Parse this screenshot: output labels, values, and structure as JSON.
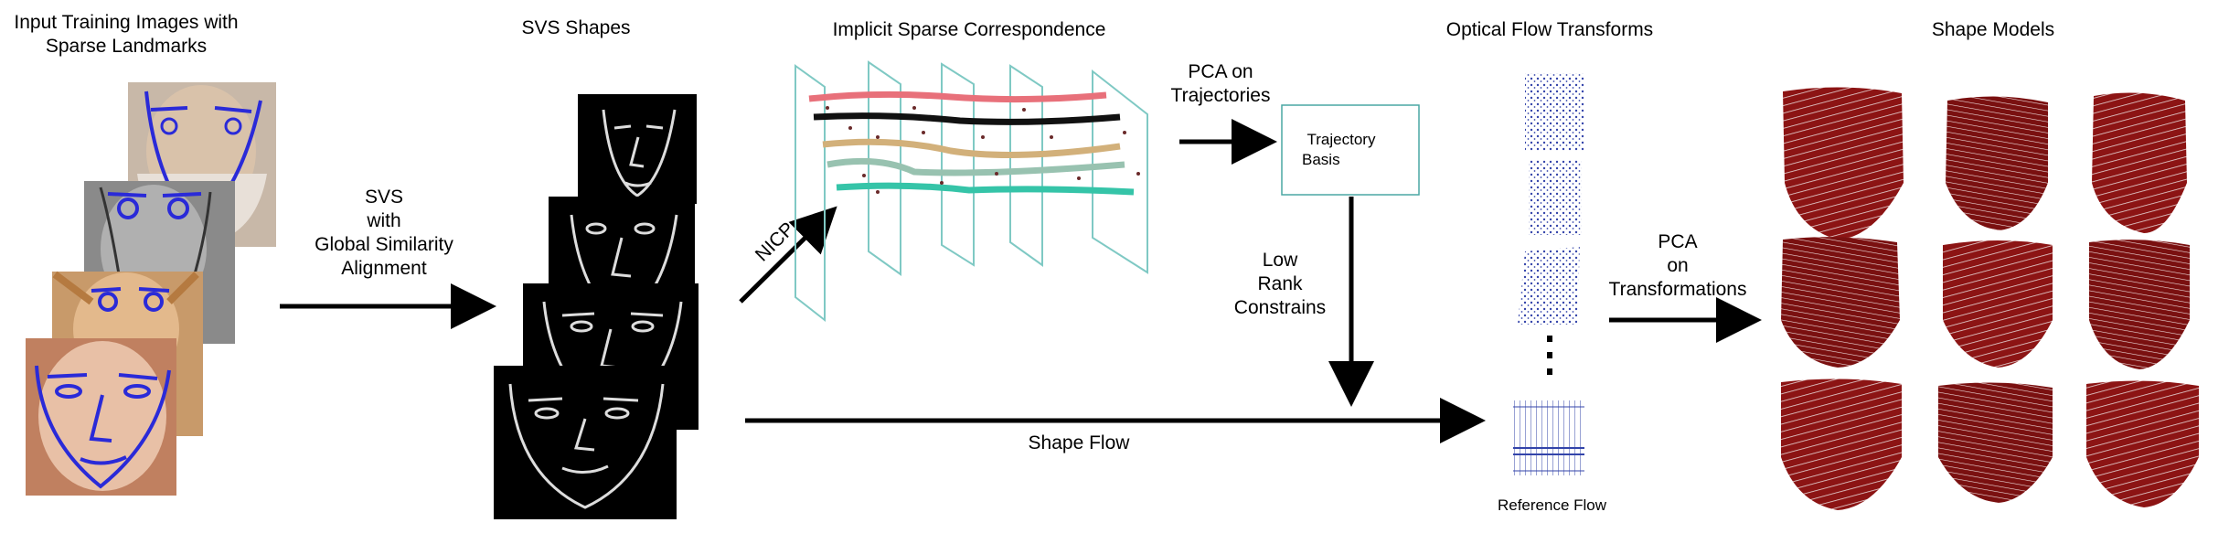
{
  "sections": {
    "input_title_line1": "Input Training Images with",
    "input_title_line2": "Sparse Landmarks",
    "svs_title": "SVS Shapes",
    "implicit_title": "Implicit Sparse Correspondence",
    "optical_title": "Optical Flow Transforms",
    "models_title": "Shape Models"
  },
  "arrows": {
    "svs_line1": "SVS",
    "svs_line2": "with",
    "svs_line3": "Global Similarity",
    "svs_line4": "Alignment",
    "nicp": "NICP",
    "pca_traj_line1": "PCA on",
    "pca_traj_line2": "Trajectories",
    "low_rank_line1": "Low",
    "low_rank_line2": "Rank",
    "low_rank_line3": "Constrains",
    "pca_trans_line1": "PCA",
    "pca_trans_line2": "on",
    "pca_trans_line3": "Transformations",
    "shape_flow": "Shape Flow"
  },
  "trajectory_basis": {
    "line1": "Trajectory",
    "line2": "Basis"
  },
  "reference_flow": "Reference Flow",
  "colors": {
    "landmark_blue": "#2a2ad8",
    "trajectory_red": "#e8707a",
    "trajectory_black": "#111111",
    "trajectory_tan": "#d2b07a",
    "trajectory_sage": "#98c2b0",
    "trajectory_teal": "#35c4a8",
    "plane_teal": "#7fc9c4",
    "mesh_red": "#8c1414",
    "flow_blue": "#3344aa"
  }
}
